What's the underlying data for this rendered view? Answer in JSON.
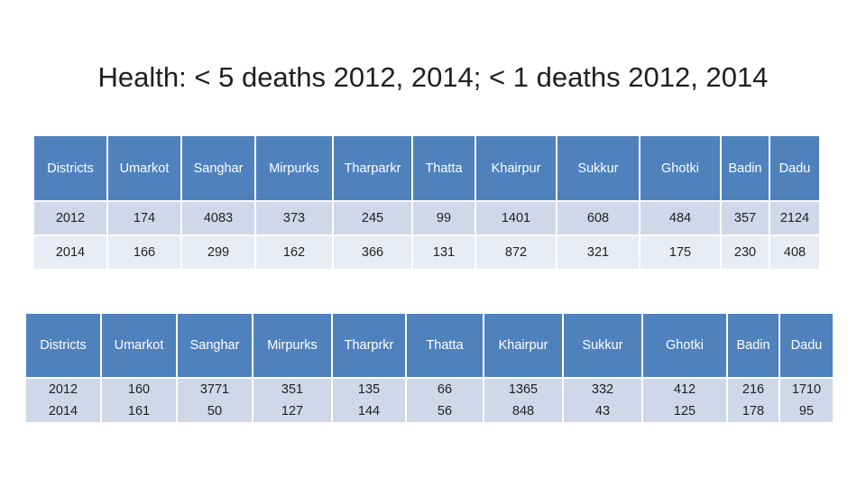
{
  "title": "Health: < 5 deaths 2012, 2014; < 1 deaths 2012, 2014",
  "table1": {
    "headers": [
      "Districts",
      "Umarkot",
      "Sanghar",
      "Mirpurks",
      "Tharparkr",
      "Thatta",
      "Khairpur",
      "Sukkur",
      "Ghotki",
      "Badin",
      "Dadu"
    ],
    "rows": [
      [
        "2012",
        "174",
        "4083",
        "373",
        "245",
        "99",
        "1401",
        "608",
        "484",
        "357",
        "2124"
      ],
      [
        "2014",
        "166",
        "299",
        "162",
        "366",
        "131",
        "872",
        "321",
        "175",
        "230",
        "408"
      ]
    ]
  },
  "table2": {
    "headers": [
      "Districts",
      "Umarkot",
      "Sanghar",
      "Mirpurks",
      "Tharprkr",
      "Thatta",
      "Khairpur",
      "Sukkur",
      "Ghotki",
      "Badin",
      "Dadu"
    ],
    "row": [
      [
        "2012",
        "2014"
      ],
      [
        "160",
        "161"
      ],
      [
        "3771",
        "50"
      ],
      [
        "351",
        "127"
      ],
      [
        "135",
        "144"
      ],
      [
        "66",
        "56"
      ],
      [
        "1365",
        "848"
      ],
      [
        "332",
        "43"
      ],
      [
        "412",
        "125"
      ],
      [
        "216",
        "178"
      ],
      [
        "1710",
        "95"
      ]
    ]
  },
  "colors": {
    "header": "#4f81bd",
    "row_dark": "#cfd8e8",
    "row_light": "#e8edf5"
  }
}
